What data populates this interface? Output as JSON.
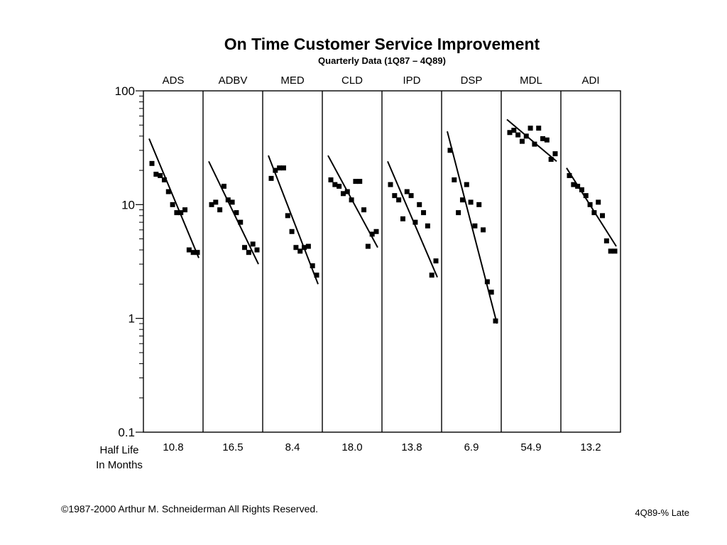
{
  "title": "On Time Customer Service Improvement",
  "subtitle": "Quarterly Data (1Q87 – 4Q89)",
  "half_life_label": [
    "Half Life",
    "In Months"
  ],
  "footer": "©1987-2000 Arthur M. Schneiderman  All Rights Reserved.",
  "footer_right": "4Q89-% Late",
  "chart_data": {
    "type": "scatter",
    "title": "On Time Customer Service Improvement",
    "subtitle": "Quarterly Data (1Q87 – 4Q89)",
    "yscale": "log",
    "ylim": [
      0.1,
      100
    ],
    "yticks": [
      0.1,
      1,
      10,
      100
    ],
    "ytick_labels": [
      "0.1",
      "1",
      "10",
      "100"
    ],
    "xlabel": "",
    "ylabel": "",
    "grid": false,
    "x": [
      1,
      2,
      3,
      4,
      5,
      6,
      7,
      8,
      9,
      10,
      11,
      12
    ],
    "panels": [
      {
        "name": "ADS",
        "half_life": "10.8",
        "values": [
          23,
          18.5,
          18,
          16.5,
          13,
          10,
          8.5,
          8.5,
          9,
          4,
          3.8,
          3.8
        ],
        "trend": [
          38,
          3.4
        ]
      },
      {
        "name": "ADBV",
        "half_life": "16.5",
        "values": [
          10,
          10.5,
          9,
          14.5,
          11,
          10.5,
          8.5,
          7,
          4.2,
          3.8,
          4.5,
          4
        ],
        "trend": [
          24,
          3
        ]
      },
      {
        "name": "MED",
        "half_life": "8.4",
        "values": [
          17,
          20,
          21,
          21,
          8,
          5.8,
          4.2,
          3.9,
          4.2,
          4.3,
          2.9,
          2.4
        ],
        "trend": [
          27,
          2
        ]
      },
      {
        "name": "CLD",
        "half_life": "18.0",
        "values": [
          16.5,
          15,
          14.5,
          12.5,
          13,
          11,
          16,
          16,
          9,
          4.3,
          5.5,
          5.8
        ],
        "trend": [
          27,
          4.2
        ]
      },
      {
        "name": "IPD",
        "half_life": "13.8",
        "values": [
          15,
          12,
          11,
          7.5,
          13,
          12,
          7,
          10,
          8.5,
          6.5,
          2.4,
          3.2
        ],
        "trend": [
          24,
          2.3
        ]
      },
      {
        "name": "DSP",
        "half_life": "6.9",
        "values": [
          30,
          16.5,
          8.5,
          11,
          15,
          10.5,
          6.5,
          10,
          6,
          2.1,
          1.7,
          0.95
        ],
        "trend": [
          44,
          0.9
        ]
      },
      {
        "name": "MDL",
        "half_life": "54.9",
        "values": [
          43,
          45,
          41,
          36,
          40,
          47,
          34,
          47,
          38,
          37,
          25,
          28
        ],
        "trend": [
          56,
          24
        ]
      },
      {
        "name": "ADI",
        "half_life": "13.2",
        "values": [
          18,
          15,
          14.5,
          13.5,
          12,
          10,
          8.5,
          10.5,
          8,
          4.8,
          3.9,
          3.9
        ],
        "trend": [
          21,
          4.3
        ]
      }
    ]
  }
}
